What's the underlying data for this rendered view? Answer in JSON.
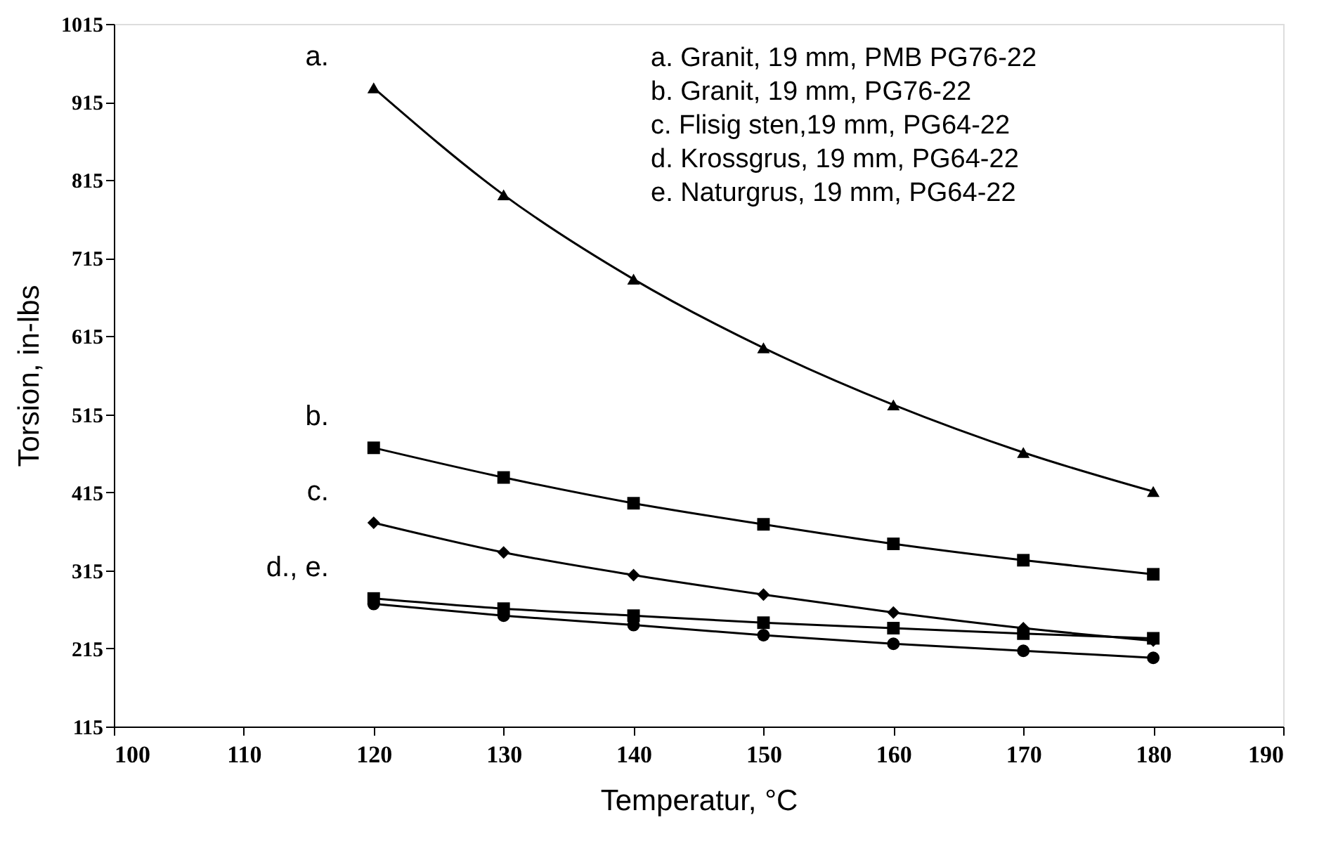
{
  "chart_data": {
    "type": "line",
    "xlabel": "Temperatur, °C",
    "ylabel": "Torsion, in-lbs",
    "x": [
      120,
      130,
      140,
      150,
      160,
      170,
      180
    ],
    "series": [
      {
        "color": "#000000",
        "marker": "triangle",
        "values": [
          933,
          796,
          688,
          600,
          527,
          466,
          416
        ]
      },
      {
        "color": "#000000",
        "marker": "square",
        "values": [
          472,
          434,
          401,
          374,
          349,
          328,
          310
        ]
      },
      {
        "color": "#000000",
        "marker": "diamond",
        "values": [
          376,
          338,
          309,
          284,
          261,
          241,
          225
        ]
      },
      {
        "color": "#000000",
        "marker": "square",
        "values": [
          279,
          266,
          257,
          248,
          241,
          234,
          228
        ]
      },
      {
        "color": "#000000",
        "marker": "circle",
        "values": [
          272,
          257,
          245,
          232,
          221,
          212,
          203
        ]
      }
    ],
    "annotations": [
      "a.",
      "b.",
      "c.",
      "d., e.",
      "a.  Granit, 19 mm, PMB PG76-22",
      "b.  Granit, 19 mm, PG76-22",
      "c.  Flisig sten,19 mm, PG64-22",
      "d.  Krossgrus, 19 mm, PG64-22",
      "e.  Naturgrus, 19 mm, PG64-22"
    ],
    "xlim": [
      100,
      190
    ],
    "xticks": [
      100,
      110,
      120,
      130,
      140,
      150,
      160,
      170,
      180,
      190
    ],
    "ylim": [
      115,
      1015
    ],
    "yticks": [
      115,
      215,
      315,
      415,
      515,
      615,
      715,
      815,
      915,
      1015
    ],
    "grid": false,
    "line_style": "solid"
  }
}
